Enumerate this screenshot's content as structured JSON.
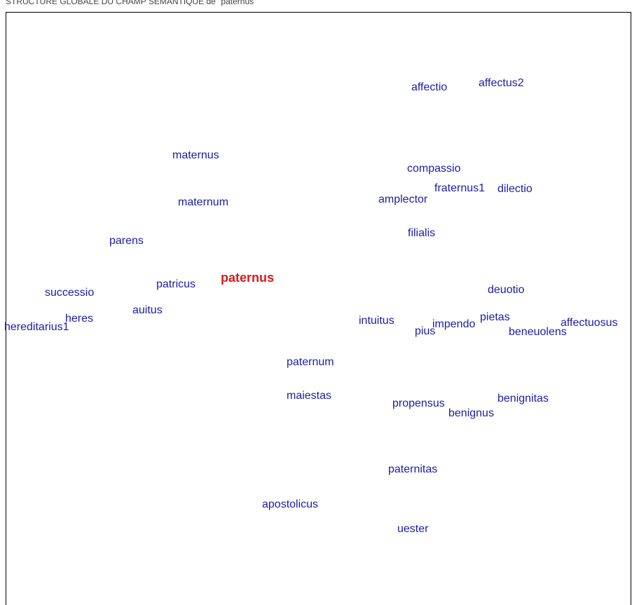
{
  "title": "STRUCTURE GLOBALE DU CHAMP SÉMANTIQUE de \"paternus\"",
  "focus": "paternus",
  "words": [
    "affectio",
    "affectus2",
    "maternus",
    "compassio",
    "fraternus1",
    "dilectio",
    "amplector",
    "maternum",
    "filialis",
    "parens",
    "patricus",
    "successio",
    "deuotio",
    "auitus",
    "heres",
    "hereditarius1",
    "intuitus",
    "pietas",
    "impendo",
    "pius",
    "affectuosus",
    "beneuolens",
    "paternum",
    "maiestas",
    "benignitas",
    "propensus",
    "benignus",
    "paternitas",
    "apostolicus",
    "uester"
  ]
}
